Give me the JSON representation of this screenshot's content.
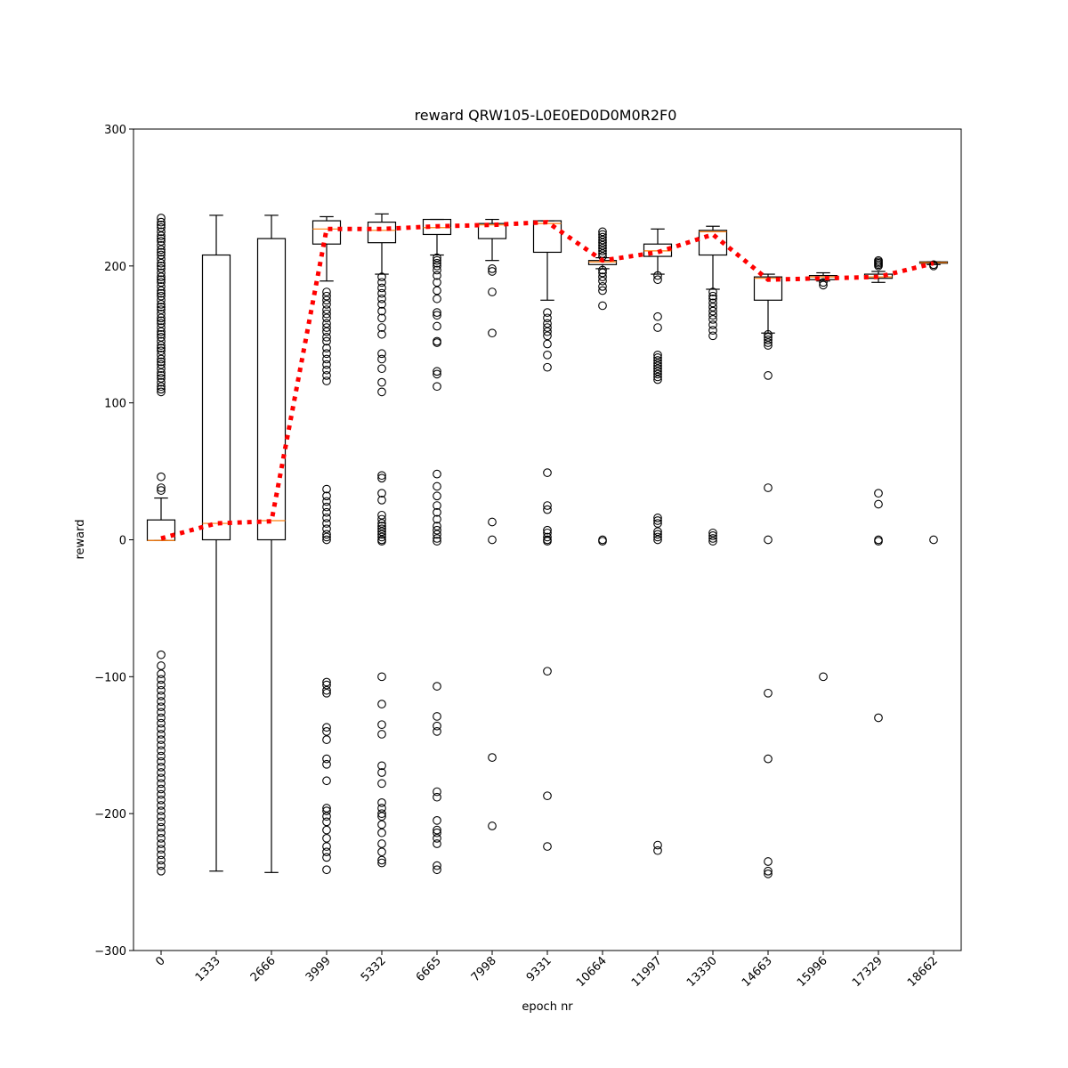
{
  "chart_data": {
    "type": "box",
    "title": "reward QRW105-L0E0ED0D0M0R2F0",
    "xlabel": "epoch nr",
    "ylabel": "reward",
    "ylim": [
      -300,
      300
    ],
    "yticks": [
      -300,
      -200,
      -100,
      0,
      100,
      200,
      300
    ],
    "ytick_labels": [
      "−300",
      "−200",
      "−100",
      "0",
      "100",
      "200",
      "300"
    ],
    "categories": [
      "0",
      "1333",
      "2666",
      "3999",
      "5332",
      "6665",
      "7998",
      "9331",
      "10664",
      "11997",
      "13330",
      "14663",
      "15996",
      "17329",
      "18662"
    ],
    "boxes": [
      {
        "whislo": -0.5,
        "q1": -0.5,
        "med": -0.5,
        "q3": 14.5,
        "whishi": 30.5,
        "fliers": [
          235,
          232,
          230,
          228,
          225,
          222,
          220,
          218,
          215,
          212,
          210,
          208,
          205,
          202,
          200,
          198,
          195,
          192,
          190,
          188,
          185,
          182,
          180,
          178,
          175,
          172,
          170,
          168,
          165,
          162,
          160,
          158,
          155,
          152,
          150,
          148,
          145,
          142,
          140,
          138,
          135,
          132,
          130,
          128,
          125,
          122,
          120,
          118,
          115,
          112,
          110,
          108,
          46,
          38,
          36,
          -84,
          -92,
          -98,
          -102,
          -106,
          -110,
          -114,
          -118,
          -122,
          -126,
          -130,
          -134,
          -138,
          -142,
          -146,
          -150,
          -154,
          -158,
          -162,
          -166,
          -170,
          -174,
          -178,
          -182,
          -186,
          -190,
          -194,
          -198,
          -202,
          -206,
          -210,
          -214,
          -218,
          -222,
          -226,
          -230,
          -234,
          -238,
          -242
        ]
      },
      {
        "whislo": -242,
        "q1": 0,
        "med": 12,
        "q3": 208,
        "whishi": 237,
        "fliers": []
      },
      {
        "whislo": -243,
        "q1": 0,
        "med": 14,
        "q3": 220,
        "whishi": 237,
        "fliers": []
      },
      {
        "whislo": 189,
        "q1": 216,
        "med": 227,
        "q3": 233,
        "whishi": 236,
        "fliers": [
          181,
          178,
          175,
          172,
          168,
          165,
          162,
          158,
          155,
          152,
          148,
          145,
          140,
          136,
          132,
          128,
          124,
          120,
          116,
          37,
          32,
          28,
          24,
          20,
          16,
          12,
          8,
          4,
          2,
          0,
          -104,
          -106,
          -110,
          -112,
          -137,
          -140,
          -146,
          -160,
          -164,
          -176,
          -196,
          -198,
          -202,
          -206,
          -212,
          -218,
          -224,
          -228,
          -232,
          -241
        ]
      },
      {
        "whislo": 194,
        "q1": 217,
        "med": 226,
        "q3": 232,
        "whishi": 238,
        "fliers": [
          192,
          188,
          184,
          180,
          176,
          172,
          167,
          162,
          155,
          150,
          136,
          132,
          125,
          115,
          108,
          47,
          45,
          34,
          29,
          18,
          15,
          12,
          10,
          8,
          6,
          4,
          2,
          0,
          -1,
          -100,
          -120,
          -135,
          -142,
          -165,
          -170,
          -178,
          -192,
          -196,
          -200,
          -202,
          -208,
          -214,
          -222,
          -228,
          -234,
          -236
        ]
      },
      {
        "whislo": 208,
        "q1": 223,
        "med": 228,
        "q3": 234,
        "whishi": 234,
        "fliers": [
          206,
          204,
          202,
          200,
          197,
          193,
          188,
          182,
          176,
          166,
          164,
          156,
          145,
          144,
          123,
          121,
          112,
          48,
          39,
          32,
          25,
          20,
          15,
          10,
          7,
          4,
          1,
          -1,
          -107,
          -129,
          -136,
          -140,
          -184,
          -188,
          -205,
          -212,
          -214,
          -218,
          -222,
          -238,
          -241
        ]
      },
      {
        "whislo": 204,
        "q1": 220,
        "med": 230,
        "q3": 231,
        "whishi": 234,
        "fliers": [
          198,
          196,
          181,
          151,
          13,
          0,
          -159,
          -209
        ]
      },
      {
        "whislo": 175,
        "q1": 210,
        "med": 231,
        "q3": 233,
        "whishi": 233,
        "fliers": [
          166,
          162,
          158,
          155,
          152,
          149,
          143,
          135,
          126,
          49,
          25,
          22,
          7,
          5,
          2,
          0,
          -1,
          -96,
          -187,
          -224
        ]
      },
      {
        "whislo": 198,
        "q1": 201,
        "med": 203,
        "q3": 204,
        "whishi": 206,
        "fliers": [
          225,
          223,
          221,
          219,
          217,
          215,
          213,
          211,
          209,
          207,
          197,
          195,
          192,
          189,
          185,
          182,
          171,
          0,
          -1
        ]
      },
      {
        "whislo": 194,
        "q1": 207,
        "med": 211,
        "q3": 216,
        "whishi": 227,
        "fliers": [
          193,
          190,
          163,
          155,
          135,
          133,
          131,
          129,
          127,
          125,
          123,
          121,
          119,
          117,
          16,
          14,
          12,
          6,
          4,
          2,
          0,
          -223,
          -227
        ]
      },
      {
        "whislo": 183,
        "q1": 208,
        "med": 225,
        "q3": 226,
        "whishi": 229,
        "fliers": [
          181,
          178,
          176,
          173,
          170,
          167,
          164,
          161,
          157,
          153,
          149,
          5,
          3,
          1,
          -1
        ]
      },
      {
        "whislo": 151,
        "q1": 175,
        "med": 191,
        "q3": 192,
        "whishi": 194,
        "fliers": [
          150,
          148,
          146,
          144,
          142,
          120,
          38,
          0,
          -112,
          -160,
          -235,
          -242,
          -244
        ]
      },
      {
        "whislo": 189,
        "q1": 190,
        "med": 192,
        "q3": 193,
        "whishi": 195,
        "fliers": [
          188,
          186,
          -100
        ]
      },
      {
        "whislo": 188,
        "q1": 191,
        "med": 192,
        "q3": 194,
        "whishi": 196,
        "fliers": [
          204,
          203,
          202,
          201,
          200,
          34,
          26,
          0,
          -1,
          -130
        ]
      },
      {
        "whislo": 201,
        "q1": 202,
        "med": 202.5,
        "q3": 203,
        "whishi": 203,
        "fliers": [
          201,
          200,
          0
        ]
      }
    ],
    "mean_line": {
      "style": "dotted",
      "color": "#ff0000",
      "values": [
        1,
        12,
        13.5,
        227,
        227,
        229,
        230,
        232,
        204,
        210,
        223,
        190,
        191,
        192,
        202
      ]
    },
    "colors": {
      "box": "#000000",
      "median": "#ff7f0e",
      "flier": "#000000"
    }
  }
}
